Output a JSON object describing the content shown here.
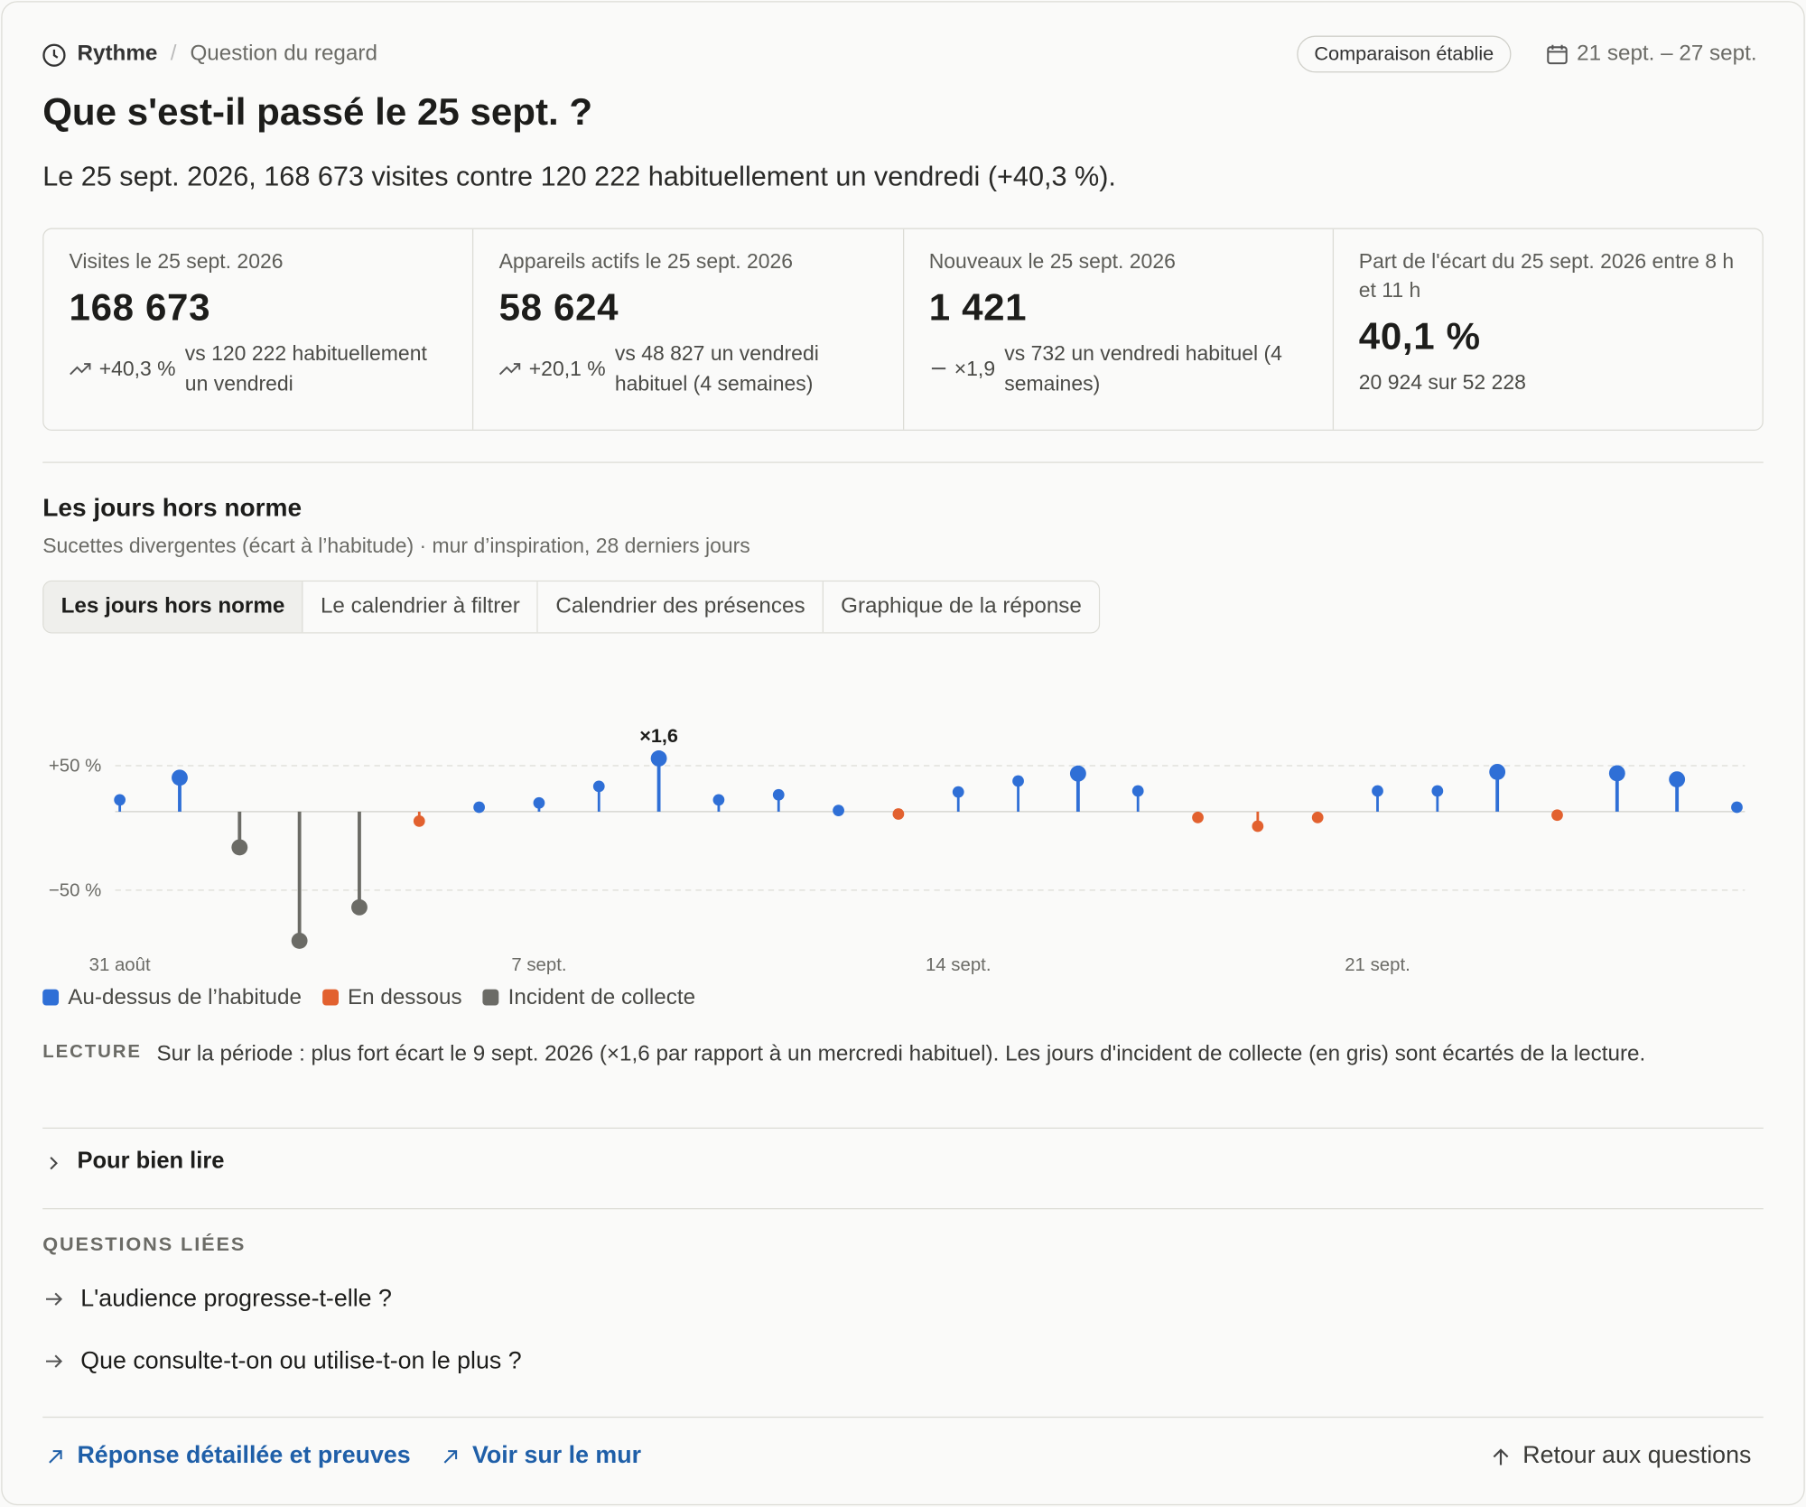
{
  "header": {
    "breadcrumb": [
      "Rythme",
      "Question du regard"
    ],
    "badge": "Comparaison établie",
    "date_range": "21 sept. – 27 sept."
  },
  "title": "Que s'est-il passé le 25 sept. ?",
  "summary": "Le 25 sept. 2026, 168 673 visites contre 120 222 habituellement un vendredi (+40,3 %).",
  "kpis": [
    {
      "label": "Visites le 25 sept. 2026",
      "value": "168 673",
      "delta": "+40,3 %",
      "note": "vs 120 222 habituellement un vendredi"
    },
    {
      "label": "Appareils actifs le 25 sept. 2026",
      "value": "58 624",
      "delta": "+20,1 %",
      "note": "vs 48 827 un vendredi habituel (4 semaines)"
    },
    {
      "label": "Nouveaux le 25 sept. 2026",
      "value": "1 421",
      "delta": "×1,9",
      "note": "vs 732 un vendredi habituel (4 semaines)"
    },
    {
      "label": "Part de l'écart du 25 sept. 2026 entre 8 h et 11 h",
      "value": "40,1 %",
      "note": "20 924 sur 52 228"
    }
  ],
  "section": {
    "title": "Les jours hors norme",
    "subtitle": "Sucettes divergentes (écart à l’habitude) · mur d’inspiration, 28 derniers jours"
  },
  "tabs": [
    "Les jours hors norme",
    "Le calendrier à filtrer",
    "Calendrier des présences",
    "Graphique de la réponse"
  ],
  "chart_data": {
    "type": "lollipop",
    "yscale": "log-ratio",
    "categories": [
      "31 août",
      null,
      null,
      null,
      null,
      null,
      null,
      "7 sept.",
      null,
      null,
      null,
      null,
      null,
      null,
      "14 sept.",
      null,
      null,
      null,
      null,
      null,
      null,
      "21 sept.",
      null,
      null,
      null,
      null,
      null,
      null
    ],
    "series": [
      {
        "name": "Au-dessus de l’habitude",
        "color": "#2f6fd6",
        "values": [
          11,
          35,
          null,
          null,
          null,
          null,
          4,
          8,
          25,
          60,
          11,
          16,
          1,
          null,
          19,
          31,
          40,
          20,
          null,
          null,
          null,
          20,
          20,
          42,
          null,
          40.3,
          33,
          4
        ],
        "value_labels": [
          null,
          null,
          null,
          null,
          null,
          null,
          null,
          null,
          null,
          "×1,6",
          null,
          null,
          null,
          null,
          null,
          null,
          null,
          null,
          null,
          null,
          null,
          null,
          null,
          null,
          null,
          null,
          null,
          null
        ]
      },
      {
        "name": "En dessous",
        "color": "#e2612f",
        "values": [
          null,
          null,
          null,
          null,
          null,
          -8,
          null,
          null,
          null,
          null,
          null,
          null,
          null,
          -2,
          null,
          null,
          null,
          null,
          -5,
          -12,
          -5,
          null,
          null,
          null,
          -3,
          null,
          null,
          null
        ]
      },
      {
        "name": "Incident de collecte",
        "color": "#6b6b66",
        "values": [
          null,
          null,
          -27,
          -68,
          -57,
          null,
          null,
          null,
          null,
          null,
          null,
          null,
          null,
          null,
          null,
          null,
          null,
          null,
          null,
          null,
          null,
          null,
          null,
          null,
          null,
          null,
          null,
          null
        ]
      }
    ],
    "ylim": [
      -72,
      190
    ],
    "yticks": [
      {
        "value": 50,
        "label": "+50 %"
      },
      {
        "value": -50,
        "label": "−50 %"
      }
    ],
    "grid": true
  },
  "reading": {
    "label": "LECTURE",
    "text": "Sur la période : plus fort écart le 9 sept. 2026 (×1,6 par rapport à un mercredi habituel). Les jours d'incident de collecte (en gris) sont écartés de la lecture."
  },
  "details": "Pour bien lire",
  "related": {
    "title": "QUESTIONS LIÉES",
    "items": [
      "L'audience progresse-t-elle ?",
      "Que consulte-t-on ou utilise-t-on le plus ?"
    ]
  },
  "footer": {
    "links": [
      "Réponse détaillée et preuves",
      "Voir sur le mur"
    ],
    "back": "Retour aux questions"
  }
}
